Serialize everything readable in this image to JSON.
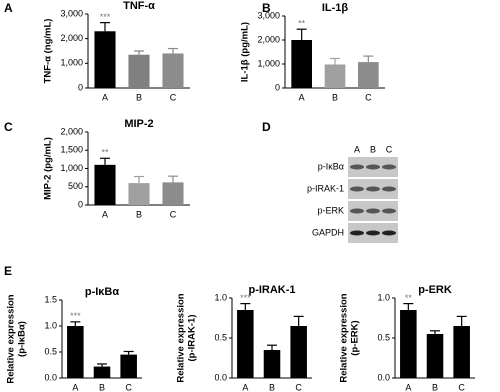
{
  "chart_data": [
    {
      "type": "bar",
      "panel": "A",
      "title": "TNF-α",
      "ylabel": [
        "TNF-α (ng/mL)"
      ],
      "categories": [
        "A",
        "B",
        "C"
      ],
      "series": [
        {
          "values": [
            2300,
            1350,
            1400
          ],
          "errors": [
            350,
            150,
            200
          ],
          "colors": [
            "#000000",
            "#808080",
            "#8c8c8c"
          ]
        }
      ],
      "annotation": "***",
      "ylim": [
        0,
        3000
      ],
      "yticks": [
        0,
        {
          "value": 1000,
          "label": "1,000"
        },
        {
          "value": 2000,
          "label": "2,000"
        },
        {
          "value": 3000,
          "label": "3,000"
        }
      ]
    },
    {
      "type": "bar",
      "panel": "B",
      "title": "IL-1β",
      "ylabel": [
        "IL-1β (pg/mL)"
      ],
      "categories": [
        "A",
        "B",
        "C"
      ],
      "series": [
        {
          "values": [
            2000,
            980,
            1080
          ],
          "errors": [
            450,
            250,
            250
          ],
          "colors": [
            "#000000",
            "#a0a0a0",
            "#8c8c8c"
          ]
        }
      ],
      "annotation": "**",
      "ylim": [
        0,
        3000
      ],
      "yticks": [
        0,
        {
          "value": 1000,
          "label": "1,000"
        },
        {
          "value": 2000,
          "label": "2,000"
        },
        {
          "value": 3000,
          "label": "3,000"
        }
      ]
    },
    {
      "type": "bar",
      "panel": "C",
      "title": "MIP-2",
      "ylabel": [
        "MIP-2 (pg/mL)"
      ],
      "categories": [
        "A",
        "B",
        "C"
      ],
      "series": [
        {
          "values": [
            1100,
            600,
            620
          ],
          "errors": [
            180,
            180,
            170
          ],
          "colors": [
            "#000000",
            "#a0a0a0",
            "#8c8c8c"
          ]
        }
      ],
      "annotation": "**",
      "ylim": [
        0,
        2000
      ],
      "yticks": [
        0,
        500,
        {
          "value": 1000,
          "label": "1,000"
        },
        {
          "value": 1500,
          "label": "1,500"
        },
        {
          "value": 2000,
          "label": "2,000"
        }
      ]
    },
    {
      "type": "bar",
      "panel": "E",
      "title": "p-IκBα",
      "ylabel": [
        "Relative expression",
        "(p-IκBα)"
      ],
      "categories": [
        "A",
        "B",
        "C"
      ],
      "series": [
        {
          "values": [
            1.0,
            0.22,
            0.45
          ],
          "errors": [
            0.08,
            0.05,
            0.06
          ],
          "colors": [
            "#000000",
            "#000000",
            "#000000"
          ]
        }
      ],
      "annotation": "***",
      "ylim": [
        0,
        1.5
      ],
      "yticks": [
        {
          "value": 0,
          "label": "0.0"
        },
        0.5,
        {
          "value": 1,
          "label": "1.0"
        },
        1.5
      ]
    },
    {
      "type": "bar",
      "title": "p-IRAK-1",
      "ylabel": [
        "Relative expression",
        "(p-IRAK-1)"
      ],
      "categories": [
        "A",
        "B",
        "C"
      ],
      "series": [
        {
          "values": [
            0.85,
            0.35,
            0.65
          ],
          "errors": [
            0.08,
            0.06,
            0.12
          ],
          "colors": [
            "#000000",
            "#000000",
            "#000000"
          ]
        }
      ],
      "annotation": "***",
      "ylim": [
        0,
        1
      ],
      "yticks": [
        {
          "value": 0,
          "label": "0.0"
        },
        0.5,
        {
          "value": 1,
          "label": "1.0"
        }
      ]
    },
    {
      "type": "bar",
      "title": "p-ERK",
      "ylabel": [
        "Relative expression",
        "(p-ERK)"
      ],
      "categories": [
        "A",
        "B",
        "C"
      ],
      "series": [
        {
          "values": [
            0.85,
            0.55,
            0.65
          ],
          "errors": [
            0.08,
            0.04,
            0.12
          ],
          "colors": [
            "#000000",
            "#000000",
            "#000000"
          ]
        }
      ],
      "annotation": "**",
      "ylim": [
        0,
        1
      ],
      "yticks": [
        {
          "value": 0,
          "label": "0.0"
        },
        0.5,
        {
          "value": 1,
          "label": "1.0"
        }
      ]
    }
  ],
  "blot": {
    "panel": "D",
    "lanes": [
      "A",
      "B",
      "C"
    ],
    "rows": [
      "p-IκBα",
      "p-IRAK-1",
      "p-ERK",
      "GAPDH"
    ]
  }
}
